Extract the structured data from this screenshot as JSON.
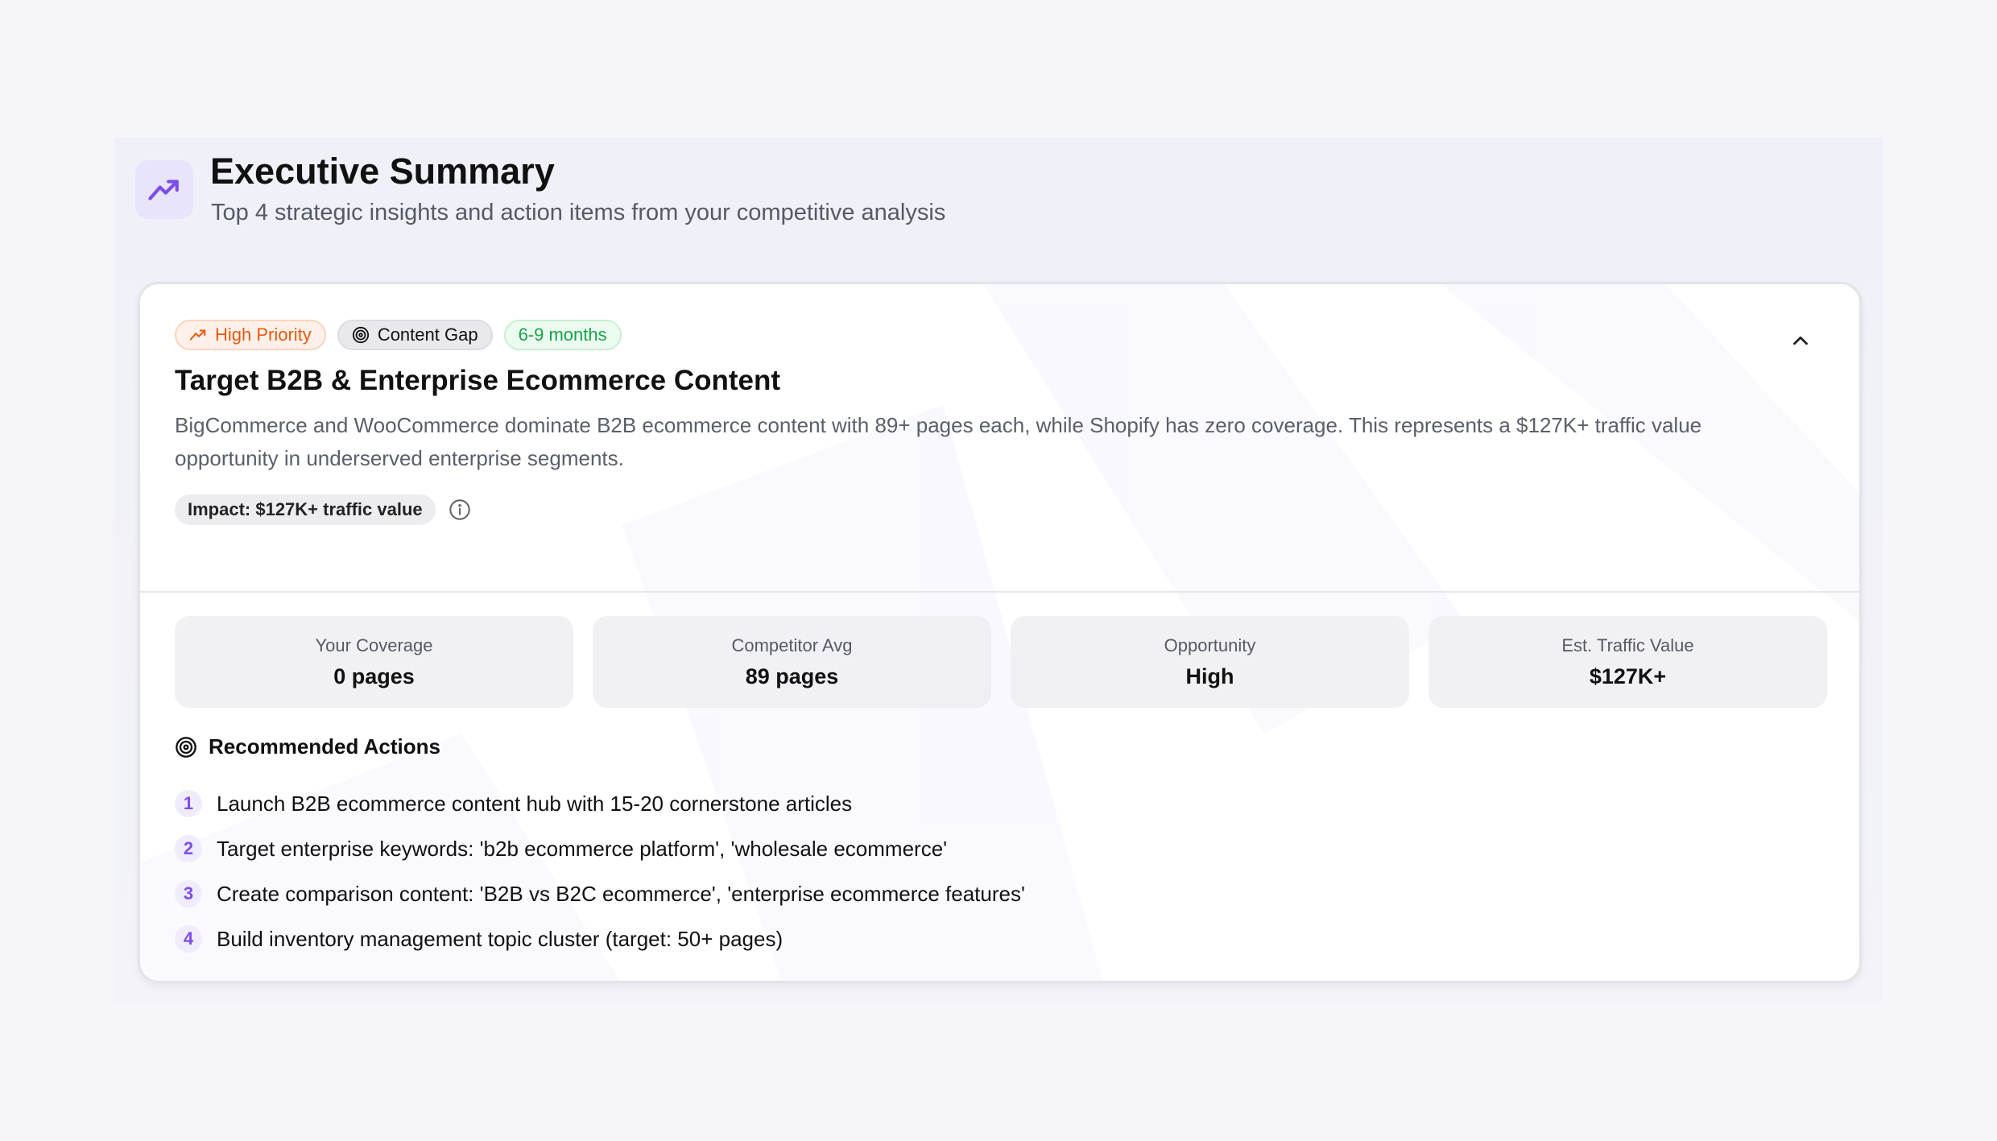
{
  "header": {
    "icon": "trending-up-icon",
    "title": "Executive Summary",
    "subtitle": "Top 4 strategic insights and action items from your competitive analysis"
  },
  "insight": {
    "badges": {
      "priority": "High Priority",
      "type": "Content Gap",
      "timeline": "6-9 months"
    },
    "title": "Target B2B & Enterprise Ecommerce Content",
    "description": "BigCommerce and WooCommerce dominate B2B ecommerce content with 89+ pages each, while Shopify has zero coverage. This represents a $127K+ traffic value opportunity in underserved enterprise segments.",
    "impact": "Impact: $127K+ traffic value",
    "expanded": true,
    "stats": [
      {
        "label": "Your Coverage",
        "value": "0 pages"
      },
      {
        "label": "Competitor Avg",
        "value": "89 pages"
      },
      {
        "label": "Opportunity",
        "value": "High"
      },
      {
        "label": "Est. Traffic Value",
        "value": "$127K+"
      }
    ],
    "actions_title": "Recommended Actions",
    "actions": [
      {
        "num": "1",
        "text": "Launch B2B ecommerce content hub with 15-20 cornerstone articles"
      },
      {
        "num": "2",
        "text": "Target enterprise keywords: 'b2b ecommerce platform', 'wholesale ecommerce'"
      },
      {
        "num": "3",
        "text": "Create comparison content: 'B2B vs B2C ecommerce', 'enterprise ecommerce features'"
      },
      {
        "num": "4",
        "text": "Build inventory management topic cluster (target: 50+ pages)"
      }
    ]
  },
  "colors": {
    "accent": "#7c4dea",
    "priority": "#ea580c",
    "timeline": "#16a34a"
  }
}
